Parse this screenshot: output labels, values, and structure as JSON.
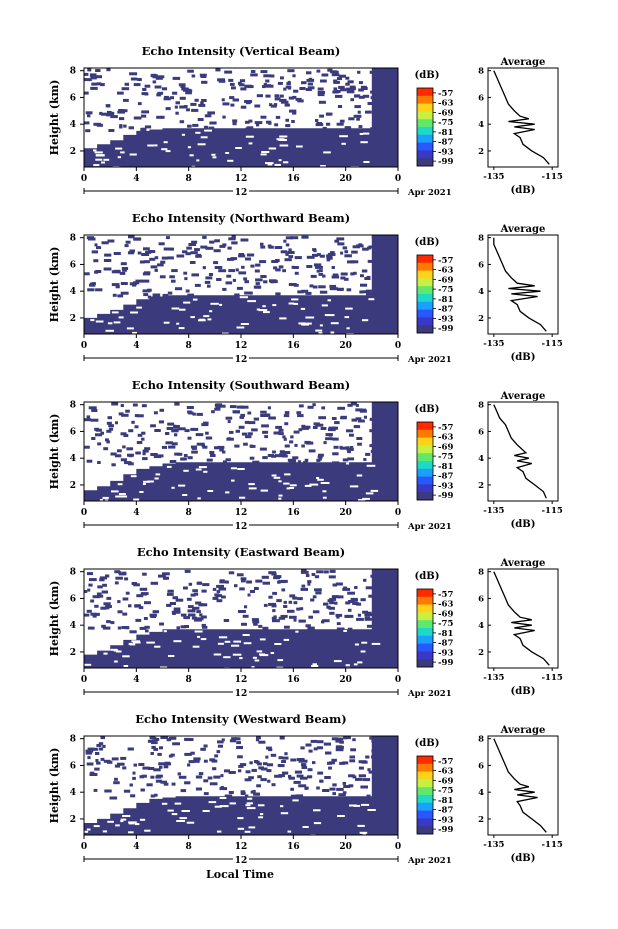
{
  "figure": {
    "xlabel": "Local Time",
    "date_label": "12",
    "month_label": "Apr 2021"
  },
  "colorbar": {
    "unit": "(dB)",
    "ticks": [
      "-57",
      "-63",
      "-69",
      "-75",
      "-81",
      "-87",
      "-93",
      "-99"
    ],
    "colors": [
      "#ff2a00",
      "#ff7a00",
      "#ffd21a",
      "#c8f040",
      "#5ee86e",
      "#1ed8c8",
      "#1aa0ff",
      "#2a58ff",
      "#3a38c8",
      "#3a3a7c"
    ]
  },
  "chart_data": [
    {
      "type": "heatmap",
      "title": "Echo Intensity (Vertical Beam)",
      "ylabel": "Height (km)",
      "x_ticks": [
        "0",
        "4",
        "8",
        "12",
        "16",
        "20",
        "0"
      ],
      "y_ticks": [
        "2",
        "4",
        "6",
        "8"
      ],
      "xlim": [
        0,
        24
      ],
      "ylim": [
        0.8,
        8.2
      ],
      "fill_color": "#3a3a7c",
      "top_height_km": [
        2.2,
        2.5,
        2.8,
        3.2,
        3.5,
        3.6,
        3.7,
        3.7,
        3.7,
        3.7,
        3.7,
        3.7,
        3.7,
        3.7,
        3.7,
        3.7,
        3.7,
        3.7,
        3.7,
        3.7,
        3.7,
        3.7,
        8.2,
        8.2
      ],
      "average": {
        "title": "Average",
        "xlabel": "(dB)",
        "x_ticks": [
          "-135",
          "-115"
        ],
        "xlim": [
          -137,
          -113
        ],
        "heights": [
          1.0,
          1.5,
          2.0,
          2.5,
          3.0,
          3.3,
          3.6,
          3.8,
          4.0,
          4.2,
          4.4,
          4.6,
          4.8,
          5.0,
          5.5,
          6.0,
          6.5,
          7.0,
          7.5,
          8.0
        ],
        "values": [
          -116,
          -118,
          -122,
          -125,
          -126,
          -128,
          -121,
          -128,
          -121,
          -130,
          -123,
          -126,
          -127,
          -128,
          -130,
          -131,
          -132,
          -133,
          -134,
          -135
        ]
      }
    },
    {
      "type": "heatmap",
      "title": "Echo Intensity (Northward Beam)",
      "ylabel": "Height (km)",
      "x_ticks": [
        "0",
        "4",
        "8",
        "12",
        "16",
        "20",
        "0"
      ],
      "y_ticks": [
        "2",
        "4",
        "6",
        "8"
      ],
      "xlim": [
        0,
        24
      ],
      "ylim": [
        0.8,
        8.2
      ],
      "fill_color": "#3a3a7c",
      "top_height_km": [
        2.0,
        2.3,
        2.6,
        3.0,
        3.4,
        3.6,
        3.7,
        3.7,
        3.7,
        3.7,
        3.7,
        3.7,
        3.7,
        3.7,
        3.7,
        3.7,
        3.7,
        3.7,
        3.7,
        3.7,
        3.7,
        3.7,
        8.2,
        8.2
      ],
      "average": {
        "title": "Average",
        "xlabel": "(dB)",
        "x_ticks": [
          "-135",
          "-115"
        ],
        "xlim": [
          -137,
          -113
        ],
        "heights": [
          1.0,
          1.5,
          2.0,
          2.5,
          3.0,
          3.3,
          3.6,
          3.8,
          4.0,
          4.2,
          4.4,
          4.6,
          4.8,
          5.0,
          5.5,
          6.0,
          6.5,
          7.0,
          7.5,
          8.0
        ],
        "values": [
          -117,
          -119,
          -123,
          -126,
          -127,
          -129,
          -120,
          -129,
          -119,
          -130,
          -121,
          -127,
          -128,
          -129,
          -131,
          -132,
          -133,
          -134,
          -135,
          -135
        ]
      }
    },
    {
      "type": "heatmap",
      "title": "Echo Intensity (Southward Beam)",
      "ylabel": "Height (km)",
      "x_ticks": [
        "0",
        "4",
        "8",
        "12",
        "16",
        "20",
        "0"
      ],
      "y_ticks": [
        "2",
        "4",
        "6",
        "8"
      ],
      "xlim": [
        0,
        24
      ],
      "ylim": [
        0.8,
        8.2
      ],
      "fill_color": "#3a3a7c",
      "top_height_km": [
        1.6,
        1.9,
        2.3,
        2.8,
        3.2,
        3.4,
        3.6,
        3.7,
        3.7,
        3.7,
        3.7,
        3.7,
        3.7,
        3.7,
        3.7,
        3.7,
        3.7,
        3.7,
        3.7,
        3.7,
        3.7,
        3.7,
        8.2,
        8.2
      ],
      "average": {
        "title": "Average",
        "xlabel": "(dB)",
        "x_ticks": [
          "-135",
          "-115"
        ],
        "xlim": [
          -137,
          -113
        ],
        "heights": [
          1.0,
          1.5,
          2.0,
          2.5,
          3.0,
          3.3,
          3.6,
          3.8,
          4.0,
          4.2,
          4.4,
          4.6,
          4.8,
          5.0,
          5.5,
          6.0,
          6.5,
          7.0,
          7.5,
          8.0
        ],
        "values": [
          -117,
          -118,
          -121,
          -124,
          -125,
          -127,
          -122,
          -127,
          -123,
          -128,
          -124,
          -125,
          -126,
          -127,
          -129,
          -130,
          -131,
          -133,
          -134,
          -135
        ]
      }
    },
    {
      "type": "heatmap",
      "title": "Echo Intensity (Eastward Beam)",
      "ylabel": "Height (km)",
      "x_ticks": [
        "0",
        "4",
        "8",
        "12",
        "16",
        "20",
        "0"
      ],
      "y_ticks": [
        "2",
        "4",
        "6",
        "8"
      ],
      "xlim": [
        0,
        24
      ],
      "ylim": [
        0.8,
        8.2
      ],
      "fill_color": "#3a3a7c",
      "top_height_km": [
        1.8,
        2.1,
        2.5,
        2.9,
        3.3,
        3.5,
        3.7,
        3.7,
        3.7,
        3.7,
        3.7,
        3.7,
        3.7,
        3.7,
        3.7,
        3.7,
        3.7,
        3.7,
        3.7,
        3.7,
        3.7,
        3.7,
        8.2,
        8.2
      ],
      "average": {
        "title": "Average",
        "xlabel": "(dB)",
        "x_ticks": [
          "-135",
          "-115"
        ],
        "xlim": [
          -137,
          -113
        ],
        "heights": [
          1.0,
          1.5,
          2.0,
          2.5,
          3.0,
          3.3,
          3.6,
          3.8,
          4.0,
          4.2,
          4.4,
          4.6,
          4.8,
          5.0,
          5.5,
          6.0,
          6.5,
          7.0,
          7.5,
          8.0
        ],
        "values": [
          -116,
          -118,
          -122,
          -125,
          -126,
          -128,
          -121,
          -128,
          -122,
          -129,
          -122,
          -126,
          -127,
          -128,
          -130,
          -131,
          -132,
          -133,
          -134,
          -135
        ]
      }
    },
    {
      "type": "heatmap",
      "title": "Echo Intensity (Westward Beam)",
      "ylabel": "Height (km)",
      "x_ticks": [
        "0",
        "4",
        "8",
        "12",
        "16",
        "20",
        "0"
      ],
      "y_ticks": [
        "2",
        "4",
        "6",
        "8"
      ],
      "xlim": [
        0,
        24
      ],
      "ylim": [
        0.8,
        8.2
      ],
      "fill_color": "#3a3a7c",
      "top_height_km": [
        1.7,
        2.0,
        2.4,
        2.8,
        3.2,
        3.5,
        3.6,
        3.7,
        3.7,
        3.7,
        3.7,
        3.7,
        3.7,
        3.7,
        3.7,
        3.7,
        3.7,
        3.7,
        3.7,
        3.7,
        3.7,
        3.7,
        8.2,
        8.2
      ],
      "average": {
        "title": "Average",
        "xlabel": "(dB)",
        "x_ticks": [
          "-135",
          "-115"
        ],
        "xlim": [
          -137,
          -113
        ],
        "heights": [
          1.0,
          1.5,
          2.0,
          2.5,
          3.0,
          3.3,
          3.6,
          3.8,
          4.0,
          4.2,
          4.4,
          4.6,
          4.8,
          5.0,
          5.5,
          6.0,
          6.5,
          7.0,
          7.5,
          8.0
        ],
        "values": [
          -117,
          -119,
          -122,
          -125,
          -126,
          -127,
          -120,
          -127,
          -121,
          -128,
          -123,
          -126,
          -127,
          -128,
          -130,
          -131,
          -132,
          -133,
          -134,
          -135
        ]
      }
    }
  ]
}
